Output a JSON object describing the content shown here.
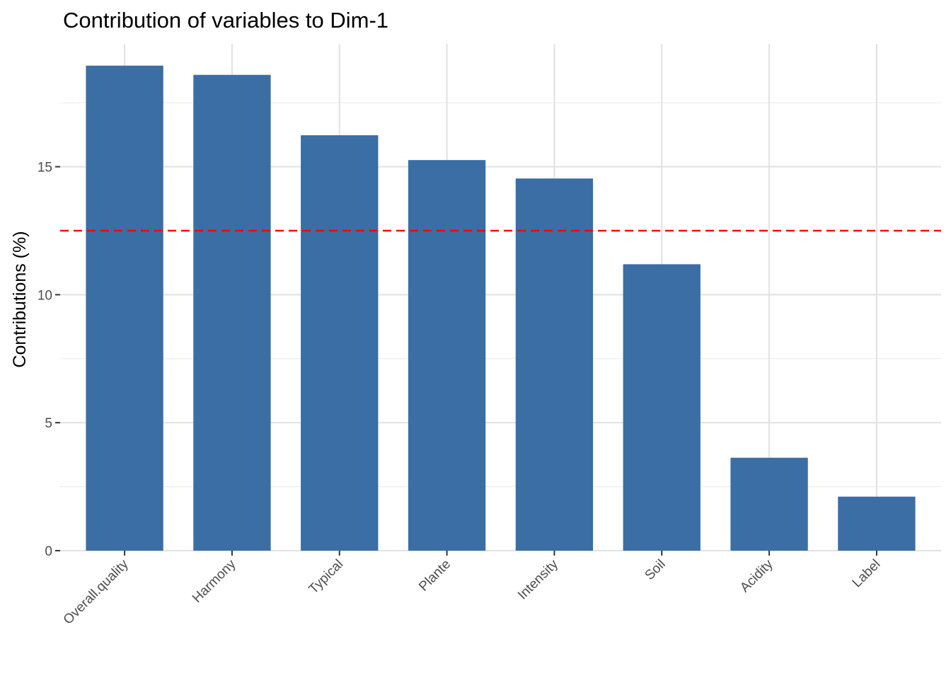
{
  "chart_data": {
    "type": "bar",
    "title": "Contribution of variables to Dim-1",
    "xlabel": "",
    "ylabel": "Contributions (%)",
    "categories": [
      "Overall.quality",
      "Harmony",
      "Typical",
      "Plante",
      "Intensity",
      "Soil",
      "Acidity",
      "Label"
    ],
    "values": [
      18.95,
      18.59,
      16.23,
      15.26,
      14.54,
      11.19,
      3.63,
      2.11
    ],
    "reference_line": {
      "value": 12.5,
      "style": "dashed",
      "color": "#FF0000"
    },
    "yticks": [
      0,
      5,
      10,
      15
    ],
    "ytick_labels": [
      "0",
      "5",
      "10",
      "15"
    ],
    "ylim": [
      0,
      19.8
    ],
    "grid": true,
    "bar_color": "#3A6EA5"
  }
}
